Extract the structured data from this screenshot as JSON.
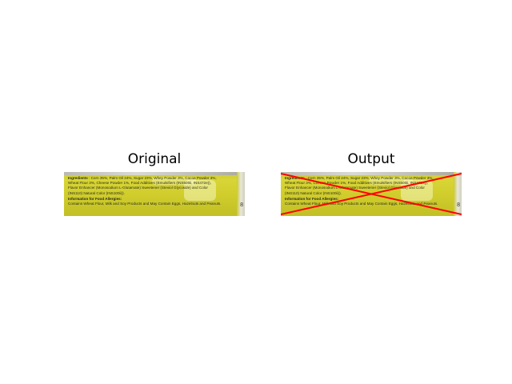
{
  "titles": {
    "original": "Original",
    "output": "Output"
  },
  "label": {
    "ingredients_heading": "Ingredients",
    "ingredients_lines": [
      ": Corn 35%, Palm Oil 24%, Sugar 23%, Whey Powder 3%, Cocoa Powder 3%,",
      "Wheat Flour 3%, Cheese Powder 1%, Food Additives (Emulsifiers (INS500ii, INS472e)),",
      "Flavor Enhancer (Monosodium L-Glutamate) Sweetener (Steviol Glycoside) and Color",
      "(INS110) Natural Color (INS100ii))."
    ],
    "allergy_heading": "Information for Food Allergies:",
    "allergy_line": "Contains Wheat Flour, Milk and Soy Products and May Contain Eggs, Hazelnuts and Peanuts.",
    "page_number": "8"
  },
  "colors": {
    "label_yellow": "#d8d536",
    "cross_red": "#ff0000"
  }
}
